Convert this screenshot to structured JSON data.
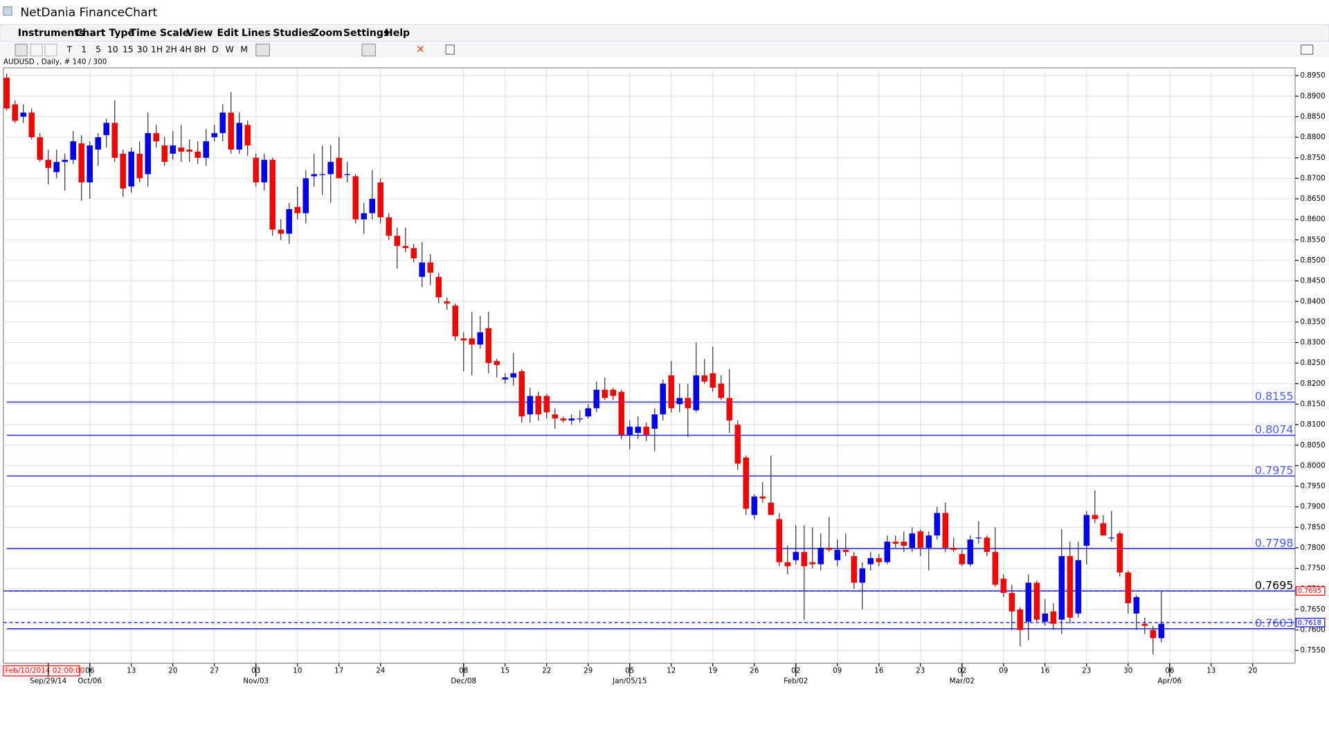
{
  "window": {
    "title": "NetDania FinanceChart",
    "menu": [
      "Instruments",
      "Chart Type",
      "Time Scale",
      "View",
      "Edit",
      "Lines",
      "Studies",
      "Zoom",
      "Settings",
      "Help"
    ],
    "toolbar": [
      "T",
      "1",
      "5",
      "10",
      "15",
      "30",
      "1H",
      "2H",
      "4H",
      "8H",
      "D",
      "W",
      "M"
    ]
  },
  "chart_data": {
    "type": "candlestick",
    "title": "AUDUSD , Daily, # 140 / 300",
    "up_color": "#0000ff",
    "down_color": "#ff0000",
    "wick_color": "#333333",
    "grid": true,
    "candles": [
      [
        0.8945,
        0.8955,
        0.8865,
        0.887
      ],
      [
        0.888,
        0.889,
        0.8835,
        0.884
      ],
      [
        0.885,
        0.888,
        0.8835,
        0.886
      ],
      [
        0.886,
        0.887,
        0.8795,
        0.88
      ],
      [
        0.88,
        0.881,
        0.874,
        0.8745
      ],
      [
        0.8745,
        0.877,
        0.8685,
        0.8725
      ],
      [
        0.8715,
        0.877,
        0.87,
        0.874
      ],
      [
        0.874,
        0.876,
        0.867,
        0.8745
      ],
      [
        0.8745,
        0.8815,
        0.8735,
        0.879
      ],
      [
        0.8785,
        0.8805,
        0.8645,
        0.869
      ],
      [
        0.869,
        0.879,
        0.865,
        0.878
      ],
      [
        0.877,
        0.881,
        0.873,
        0.88
      ],
      [
        0.8805,
        0.8845,
        0.8775,
        0.8835
      ],
      [
        0.8835,
        0.889,
        0.874,
        0.875
      ],
      [
        0.876,
        0.877,
        0.8655,
        0.8675
      ],
      [
        0.868,
        0.8775,
        0.8665,
        0.8765
      ],
      [
        0.876,
        0.879,
        0.869,
        0.87
      ],
      [
        0.871,
        0.886,
        0.868,
        0.881
      ],
      [
        0.881,
        0.883,
        0.8775,
        0.879
      ],
      [
        0.878,
        0.88,
        0.873,
        0.874
      ],
      [
        0.876,
        0.8815,
        0.8745,
        0.878
      ],
      [
        0.8775,
        0.883,
        0.874,
        0.8765
      ],
      [
        0.877,
        0.8795,
        0.874,
        0.8765
      ],
      [
        0.8765,
        0.879,
        0.8735,
        0.875
      ],
      [
        0.875,
        0.882,
        0.873,
        0.879
      ],
      [
        0.88,
        0.883,
        0.879,
        0.881
      ],
      [
        0.881,
        0.888,
        0.879,
        0.886
      ],
      [
        0.886,
        0.891,
        0.876,
        0.877
      ],
      [
        0.877,
        0.886,
        0.876,
        0.8835
      ],
      [
        0.883,
        0.884,
        0.8755,
        0.878
      ],
      [
        0.875,
        0.876,
        0.868,
        0.869
      ],
      [
        0.869,
        0.876,
        0.867,
        0.8745
      ],
      [
        0.8745,
        0.875,
        0.856,
        0.8575
      ],
      [
        0.8575,
        0.86,
        0.855,
        0.8565
      ],
      [
        0.8565,
        0.864,
        0.854,
        0.8625
      ],
      [
        0.863,
        0.868,
        0.86,
        0.8615
      ],
      [
        0.8615,
        0.872,
        0.859,
        0.87
      ],
      [
        0.8705,
        0.876,
        0.868,
        0.871
      ],
      [
        0.871,
        0.878,
        0.866,
        0.871
      ],
      [
        0.871,
        0.878,
        0.864,
        0.874
      ],
      [
        0.875,
        0.88,
        0.87,
        0.87
      ],
      [
        0.871,
        0.874,
        0.869,
        0.871
      ],
      [
        0.8705,
        0.871,
        0.859,
        0.86
      ],
      [
        0.86,
        0.864,
        0.8565,
        0.8615
      ],
      [
        0.8615,
        0.872,
        0.86,
        0.865
      ],
      [
        0.869,
        0.87,
        0.859,
        0.8605
      ],
      [
        0.8605,
        0.8615,
        0.855,
        0.856
      ],
      [
        0.856,
        0.858,
        0.848,
        0.8535
      ],
      [
        0.8535,
        0.858,
        0.852,
        0.853
      ],
      [
        0.853,
        0.854,
        0.8495,
        0.8505
      ],
      [
        0.846,
        0.8545,
        0.8435,
        0.8495
      ],
      [
        0.8495,
        0.8515,
        0.844,
        0.847
      ],
      [
        0.846,
        0.847,
        0.8395,
        0.841
      ],
      [
        0.84,
        0.841,
        0.838,
        0.8395
      ],
      [
        0.839,
        0.8395,
        0.8305,
        0.8315
      ],
      [
        0.831,
        0.8325,
        0.823,
        0.8305
      ],
      [
        0.831,
        0.8375,
        0.822,
        0.8295
      ],
      [
        0.8295,
        0.8365,
        0.8285,
        0.8325
      ],
      [
        0.8335,
        0.8375,
        0.8225,
        0.825
      ],
      [
        0.8255,
        0.826,
        0.8215,
        0.8245
      ],
      [
        0.821,
        0.8225,
        0.82,
        0.8215
      ],
      [
        0.8215,
        0.8275,
        0.8195,
        0.8225
      ],
      [
        0.823,
        0.8235,
        0.8105,
        0.812
      ],
      [
        0.8125,
        0.819,
        0.8105,
        0.817
      ],
      [
        0.817,
        0.818,
        0.811,
        0.8125
      ],
      [
        0.817,
        0.8175,
        0.8115,
        0.813
      ],
      [
        0.8125,
        0.814,
        0.809,
        0.8115
      ],
      [
        0.8115,
        0.812,
        0.8105,
        0.811
      ],
      [
        0.811,
        0.8125,
        0.81,
        0.8115
      ],
      [
        0.8115,
        0.8135,
        0.8105,
        0.8115
      ],
      [
        0.812,
        0.815,
        0.8115,
        0.814
      ],
      [
        0.814,
        0.8205,
        0.813,
        0.8185
      ],
      [
        0.8185,
        0.8215,
        0.816,
        0.8165
      ],
      [
        0.8185,
        0.819,
        0.816,
        0.817
      ],
      [
        0.818,
        0.8185,
        0.8065,
        0.8075
      ],
      [
        0.8075,
        0.811,
        0.804,
        0.8095
      ],
      [
        0.808,
        0.812,
        0.8065,
        0.8095
      ],
      [
        0.8095,
        0.8105,
        0.806,
        0.8075
      ],
      [
        0.809,
        0.814,
        0.8035,
        0.8125
      ],
      [
        0.8125,
        0.821,
        0.811,
        0.82
      ],
      [
        0.822,
        0.8255,
        0.813,
        0.814
      ],
      [
        0.815,
        0.82,
        0.813,
        0.8165
      ],
      [
        0.8165,
        0.82,
        0.807,
        0.814
      ],
      [
        0.8135,
        0.83,
        0.813,
        0.822
      ],
      [
        0.822,
        0.826,
        0.82,
        0.8205
      ],
      [
        0.8225,
        0.829,
        0.818,
        0.819
      ],
      [
        0.82,
        0.822,
        0.816,
        0.8165
      ],
      [
        0.8165,
        0.8235,
        0.808,
        0.811
      ],
      [
        0.81,
        0.811,
        0.799,
        0.8005
      ],
      [
        0.802,
        0.8025,
        0.788,
        0.7895
      ],
      [
        0.788,
        0.793,
        0.787,
        0.7925
      ],
      [
        0.7925,
        0.796,
        0.791,
        0.792
      ],
      [
        0.791,
        0.8025,
        0.788,
        0.788
      ],
      [
        0.787,
        0.7885,
        0.7755,
        0.7765
      ],
      [
        0.7765,
        0.7805,
        0.7735,
        0.7755
      ],
      [
        0.777,
        0.7855,
        0.776,
        0.779
      ],
      [
        0.779,
        0.7855,
        0.7625,
        0.7755
      ],
      [
        0.7765,
        0.785,
        0.775,
        0.776
      ],
      [
        0.776,
        0.7835,
        0.7745,
        0.78
      ],
      [
        0.78,
        0.7875,
        0.779,
        0.7795
      ],
      [
        0.777,
        0.782,
        0.7755,
        0.7795
      ],
      [
        0.7795,
        0.7835,
        0.778,
        0.779
      ],
      [
        0.778,
        0.779,
        0.77,
        0.7715
      ],
      [
        0.7715,
        0.7765,
        0.765,
        0.775
      ],
      [
        0.776,
        0.779,
        0.7745,
        0.7775
      ],
      [
        0.7775,
        0.7785,
        0.7755,
        0.7765
      ],
      [
        0.7765,
        0.783,
        0.776,
        0.7815
      ],
      [
        0.7815,
        0.783,
        0.78,
        0.781
      ],
      [
        0.7815,
        0.784,
        0.779,
        0.7805
      ],
      [
        0.78,
        0.785,
        0.779,
        0.7835
      ],
      [
        0.784,
        0.7845,
        0.778,
        0.78
      ],
      [
        0.78,
        0.784,
        0.7745,
        0.783
      ],
      [
        0.783,
        0.79,
        0.782,
        0.7885
      ],
      [
        0.7885,
        0.791,
        0.779,
        0.78
      ],
      [
        0.78,
        0.7825,
        0.779,
        0.7795
      ],
      [
        0.7785,
        0.7795,
        0.7755,
        0.776
      ],
      [
        0.776,
        0.783,
        0.7755,
        0.782
      ],
      [
        0.7825,
        0.7865,
        0.781,
        0.7825
      ],
      [
        0.7825,
        0.783,
        0.778,
        0.779
      ],
      [
        0.779,
        0.785,
        0.7705,
        0.771
      ],
      [
        0.7725,
        0.7735,
        0.768,
        0.769
      ],
      [
        0.769,
        0.771,
        0.76,
        0.7645
      ],
      [
        0.765,
        0.7655,
        0.756,
        0.76
      ],
      [
        0.762,
        0.7735,
        0.7575,
        0.7715
      ],
      [
        0.7715,
        0.772,
        0.762,
        0.7625
      ],
      [
        0.762,
        0.7675,
        0.761,
        0.764
      ],
      [
        0.7645,
        0.7665,
        0.76,
        0.7615
      ],
      [
        0.7625,
        0.7845,
        0.759,
        0.778
      ],
      [
        0.778,
        0.7815,
        0.7615,
        0.763
      ],
      [
        0.764,
        0.7815,
        0.763,
        0.777
      ],
      [
        0.7805,
        0.789,
        0.776,
        0.788
      ],
      [
        0.788,
        0.794,
        0.786,
        0.787
      ],
      [
        0.786,
        0.788,
        0.783,
        0.783
      ],
      [
        0.7825,
        0.789,
        0.7815,
        0.7825
      ],
      [
        0.7835,
        0.784,
        0.773,
        0.774
      ],
      [
        0.774,
        0.7745,
        0.764,
        0.7665
      ],
      [
        0.764,
        0.7685,
        0.76,
        0.768
      ],
      [
        0.7615,
        0.763,
        0.759,
        0.761
      ],
      [
        0.76,
        0.761,
        0.754,
        0.758
      ],
      [
        0.758,
        0.7695,
        0.757,
        0.7615
      ]
    ],
    "xlim": [
      -0.4,
      155.1
    ],
    "xticks": [
      {
        "value": 10,
        "label": "06"
      },
      {
        "value": 15,
        "label": "13"
      },
      {
        "value": 20,
        "label": "20"
      },
      {
        "value": 25,
        "label": "27"
      },
      {
        "value": 30,
        "label": "03"
      },
      {
        "value": 35,
        "label": "10"
      },
      {
        "value": 40,
        "label": "17"
      },
      {
        "value": 45,
        "label": "24"
      },
      {
        "value": 55,
        "label": "08"
      },
      {
        "value": 60,
        "label": "15"
      },
      {
        "value": 65,
        "label": "22"
      },
      {
        "value": 70,
        "label": "29"
      },
      {
        "value": 75,
        "label": "05"
      },
      {
        "value": 80,
        "label": "12"
      },
      {
        "value": 85,
        "label": "19"
      },
      {
        "value": 90,
        "label": "26"
      },
      {
        "value": 95,
        "label": "02"
      },
      {
        "value": 100,
        "label": "09"
      },
      {
        "value": 105,
        "label": "16"
      },
      {
        "value": 110,
        "label": "23"
      },
      {
        "value": 115,
        "label": "02"
      },
      {
        "value": 120,
        "label": "09"
      },
      {
        "value": 125,
        "label": "16"
      },
      {
        "value": 130,
        "label": "23"
      },
      {
        "value": 135,
        "label": "30"
      },
      {
        "value": 140,
        "label": "06"
      },
      {
        "value": 145,
        "label": "13"
      },
      {
        "value": 150,
        "label": "20"
      }
    ],
    "xticks_major": [
      {
        "value": 5,
        "label": "Sep/29/14"
      },
      {
        "value": 10,
        "label": "Oct/06"
      },
      {
        "value": 30,
        "label": "Nov/03"
      },
      {
        "value": 55,
        "label": "Dec/08"
      },
      {
        "value": 75,
        "label": "Jan/05/15"
      },
      {
        "value": 95,
        "label": "Feb/02"
      },
      {
        "value": 115,
        "label": "Mar/02"
      },
      {
        "value": 140,
        "label": "Apr/06"
      }
    ],
    "ylim": [
      0.7519,
      0.8969
    ],
    "yticks": [
      {
        "value": 0.755,
        "label": "0.7550"
      },
      {
        "value": 0.76,
        "label": "0.7600"
      },
      {
        "value": 0.765,
        "label": "0.7650"
      },
      {
        "value": 0.77,
        "label": "0.7700"
      },
      {
        "value": 0.775,
        "label": "0.7750"
      },
      {
        "value": 0.78,
        "label": "0.7800"
      },
      {
        "value": 0.785,
        "label": "0.7850"
      },
      {
        "value": 0.79,
        "label": "0.7900"
      },
      {
        "value": 0.795,
        "label": "0.7950"
      },
      {
        "value": 0.8,
        "label": "0.8000"
      },
      {
        "value": 0.805,
        "label": "0.8050"
      },
      {
        "value": 0.81,
        "label": "0.8100"
      },
      {
        "value": 0.815,
        "label": "0.8150"
      },
      {
        "value": 0.82,
        "label": "0.8200"
      },
      {
        "value": 0.825,
        "label": "0.8250"
      },
      {
        "value": 0.83,
        "label": "0.8300"
      },
      {
        "value": 0.835,
        "label": "0.8350"
      },
      {
        "value": 0.84,
        "label": "0.8400"
      },
      {
        "value": 0.845,
        "label": "0.8450"
      },
      {
        "value": 0.85,
        "label": "0.8500"
      },
      {
        "value": 0.855,
        "label": "0.8550"
      },
      {
        "value": 0.86,
        "label": "0.8600"
      },
      {
        "value": 0.865,
        "label": "0.8650"
      },
      {
        "value": 0.87,
        "label": "0.8700"
      },
      {
        "value": 0.875,
        "label": "0.8750"
      },
      {
        "value": 0.88,
        "label": "0.8800"
      },
      {
        "value": 0.885,
        "label": "0.8850"
      },
      {
        "value": 0.89,
        "label": "0.8900"
      },
      {
        "value": 0.895,
        "label": "0.8950"
      }
    ],
    "hlines": [
      {
        "value": 0.8155,
        "color": "#2a2ad0",
        "label_color": "#4a5cff"
      },
      {
        "value": 0.8074,
        "color": "#2a2ad0",
        "label_color": "#4a5cff"
      },
      {
        "value": 0.7975,
        "color": "#2a2ad0",
        "label_color": "#4a5cff"
      },
      {
        "value": 0.7798,
        "color": "#2a2ad0",
        "label_color": "#4a5cff"
      },
      {
        "value": 0.7695,
        "color": "#2a2ad0",
        "label_color": "#000000"
      },
      {
        "value": 0.7603,
        "color": "#2a2ad0",
        "label_color": "#4a5cff"
      }
    ],
    "price_tags": [
      {
        "value": 0.7695,
        "color": "#ff0000"
      },
      {
        "value": 0.7618,
        "color": "#0000ff"
      }
    ],
    "cursor_label": "Feb/10/2014 02:00:00"
  }
}
